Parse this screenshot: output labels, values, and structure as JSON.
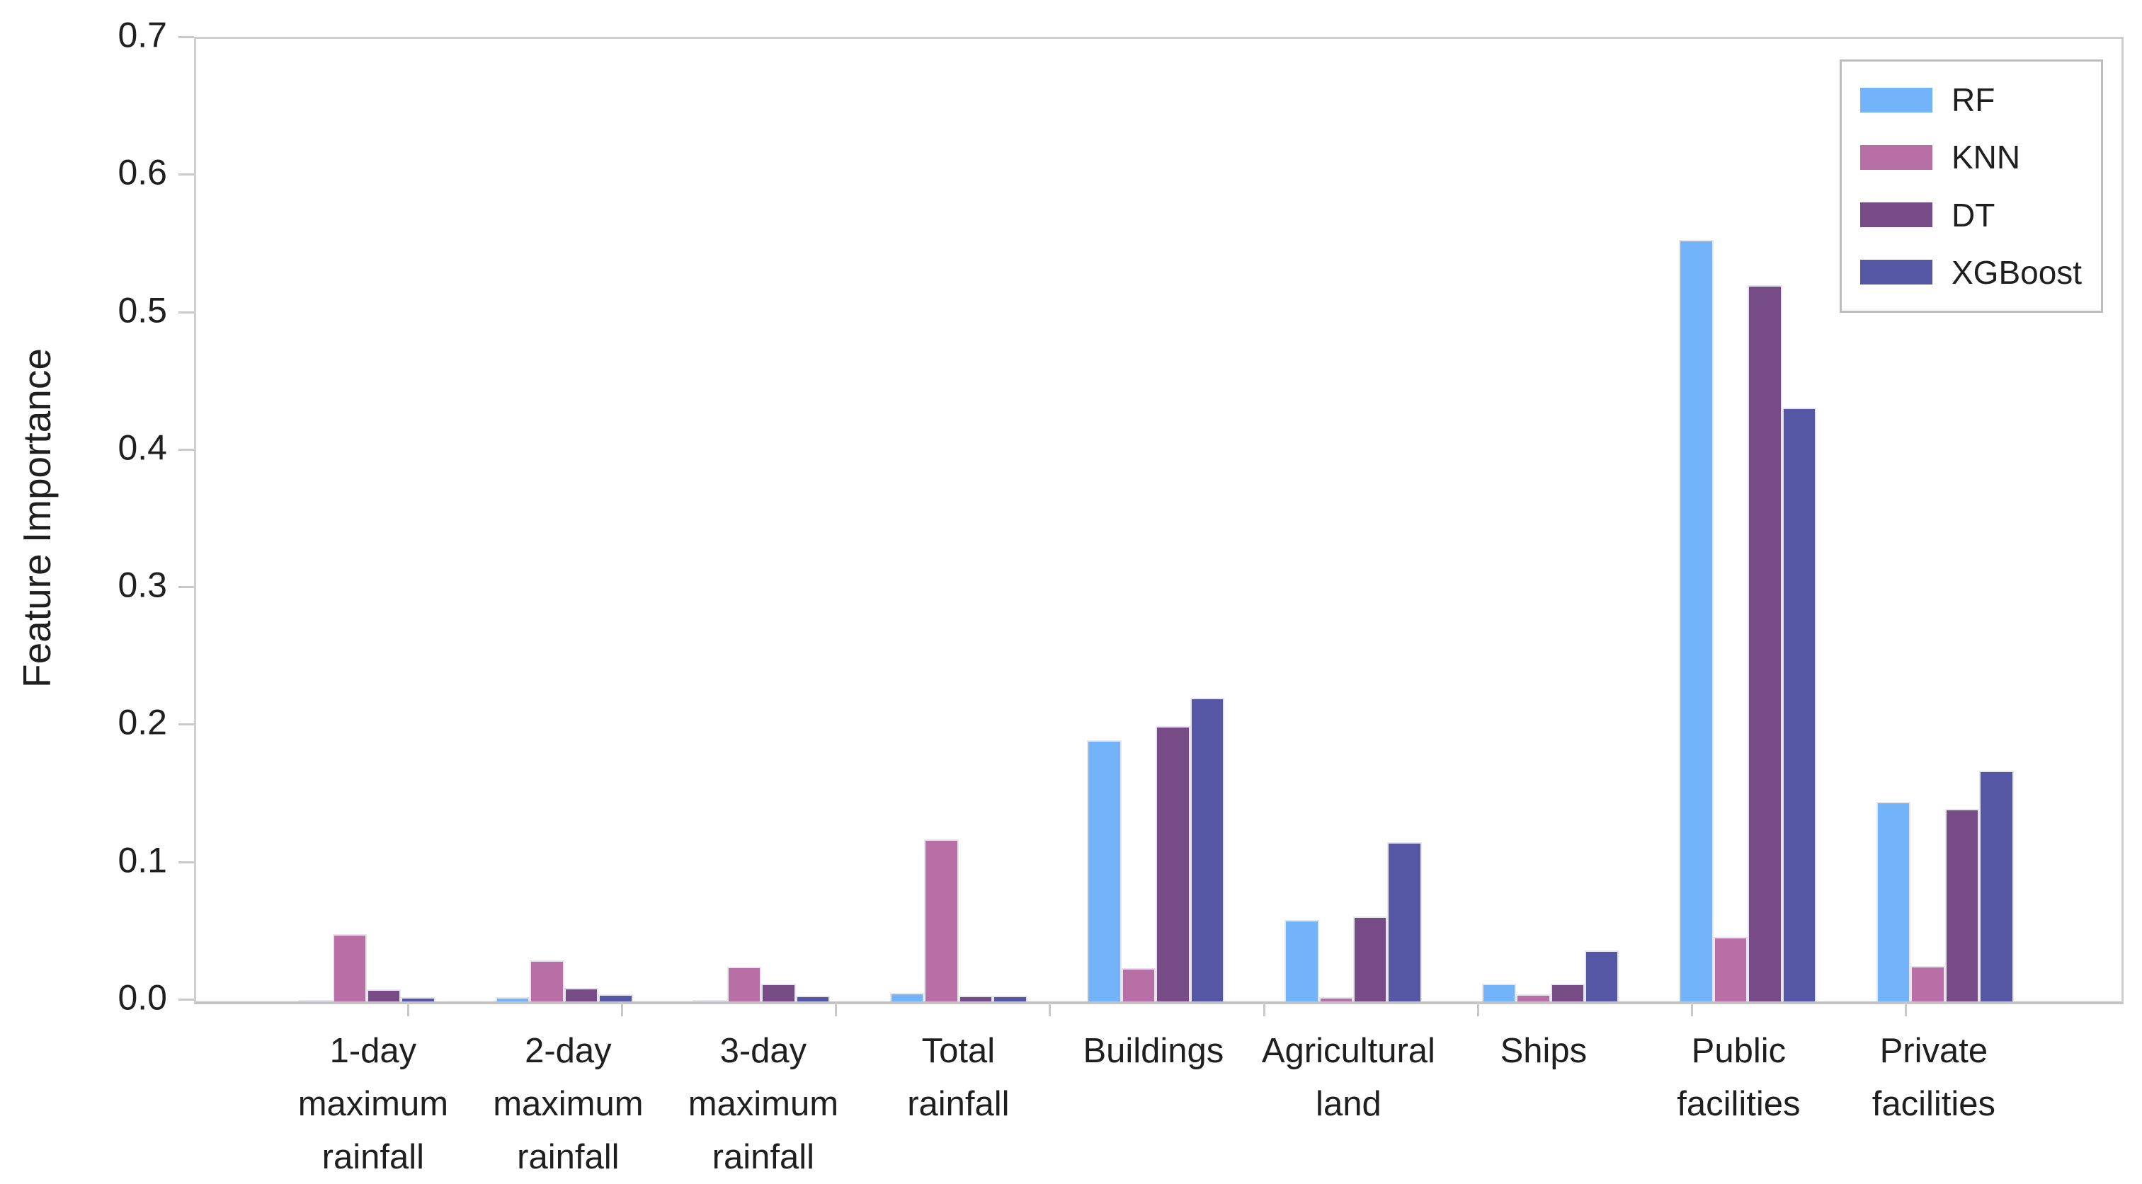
{
  "chart_data": {
    "type": "bar",
    "title": "",
    "xlabel": "",
    "ylabel": "Feature Importance",
    "ylim": [
      0,
      0.7
    ],
    "ytick_labels": [
      "0.0",
      "0.1",
      "0.2",
      "0.3",
      "0.4",
      "0.5",
      "0.6",
      "0.7"
    ],
    "grid": false,
    "legend_position": "top-right",
    "categories": [
      [
        "1-day",
        "maximum",
        "rainfall"
      ],
      [
        "2-day",
        "maximum",
        "rainfall"
      ],
      [
        "3-day",
        "maximum",
        "rainfall"
      ],
      [
        "Total",
        "rainfall"
      ],
      [
        "Buildings"
      ],
      [
        "Agricultural",
        "land"
      ],
      [
        "Ships"
      ],
      [
        "Public",
        "facilities"
      ],
      [
        "Private",
        "facilities"
      ]
    ],
    "series": [
      {
        "name": "RF",
        "color": "#72b3fa",
        "values": [
          0.001,
          0.003,
          0.001,
          0.006,
          0.19,
          0.059,
          0.013,
          0.554,
          0.145
        ]
      },
      {
        "name": "KNN",
        "color": "#b76fa6",
        "values": [
          0.049,
          0.03,
          0.025,
          0.118,
          0.024,
          0.003,
          0.005,
          0.047,
          0.026
        ]
      },
      {
        "name": "DT",
        "color": "#764b86",
        "values": [
          0.009,
          0.01,
          0.013,
          0.004,
          0.2,
          0.062,
          0.013,
          0.521,
          0.14
        ]
      },
      {
        "name": "XGBoost",
        "color": "#5557a5",
        "values": [
          0.003,
          0.005,
          0.004,
          0.004,
          0.221,
          0.116,
          0.037,
          0.432,
          0.168
        ]
      }
    ]
  }
}
